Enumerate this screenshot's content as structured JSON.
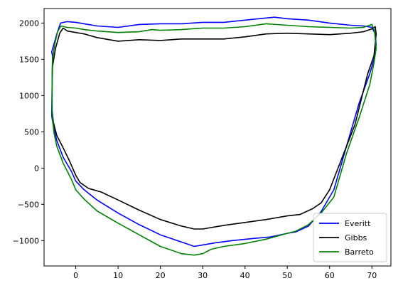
{
  "chart_data": {
    "type": "line",
    "title": "",
    "xlabel": "",
    "ylabel": "",
    "xlim": [
      -7.5,
      74.5
    ],
    "ylim": [
      -1350,
      2200
    ],
    "xticks": [
      0,
      10,
      20,
      30,
      40,
      50,
      60,
      70
    ],
    "yticks": [
      -1000,
      -500,
      0,
      500,
      1000,
      1500,
      2000
    ],
    "grid": false,
    "legend_position": "lower-right",
    "series": [
      {
        "name": "Everitt",
        "color": "#0000ff",
        "x": [
          -5.5,
          -5.7,
          -5.2,
          -4.5,
          -3.6,
          -2,
          0,
          2,
          5,
          10,
          15,
          20,
          25,
          30,
          35,
          40,
          45,
          47,
          50,
          55,
          60,
          65,
          68,
          70,
          70.8,
          71,
          70.5,
          69.5,
          67,
          64,
          61,
          58,
          55,
          52,
          50,
          46,
          42,
          37,
          33,
          30,
          28,
          26,
          23,
          20,
          15,
          10,
          5,
          2,
          0,
          -1,
          -3,
          -4.5,
          -5.2,
          -5.6,
          -5.7
        ],
        "y": [
          1550,
          1600,
          1700,
          1850,
          2000,
          2020,
          2010,
          1990,
          1960,
          1940,
          1980,
          1990,
          1990,
          2010,
          2010,
          2040,
          2070,
          2080,
          2060,
          2040,
          2000,
          1970,
          1960,
          1940,
          1850,
          1700,
          1500,
          1300,
          900,
          300,
          -300,
          -600,
          -800,
          -880,
          -900,
          -950,
          -970,
          -1000,
          -1030,
          -1060,
          -1080,
          -1040,
          -980,
          -920,
          -780,
          -620,
          -440,
          -300,
          -180,
          -50,
          150,
          380,
          550,
          680,
          740
        ]
      },
      {
        "name": "Gibbs",
        "color": "#000000",
        "x": [
          -5.6,
          -5.5,
          -4.8,
          -3.8,
          -3,
          -2,
          0,
          2,
          5,
          10,
          15,
          20,
          25,
          30,
          35,
          40,
          45,
          50,
          55,
          60,
          65,
          68,
          70,
          70.8,
          71,
          70.5,
          69,
          66,
          63,
          60,
          58,
          56,
          53,
          50,
          45,
          40,
          35,
          30,
          28,
          25,
          20,
          15,
          10,
          6,
          3,
          1,
          0,
          -1.5,
          -3,
          -4.5,
          -5.3,
          -5.6
        ],
        "y": [
          1250,
          1400,
          1650,
          1860,
          1930,
          1890,
          1870,
          1850,
          1800,
          1750,
          1770,
          1760,
          1780,
          1780,
          1780,
          1810,
          1850,
          1860,
          1850,
          1840,
          1860,
          1880,
          1920,
          1950,
          1850,
          1550,
          1300,
          600,
          150,
          -300,
          -480,
          -560,
          -640,
          -660,
          -710,
          -750,
          -790,
          -840,
          -840,
          -800,
          -710,
          -580,
          -440,
          -330,
          -280,
          -200,
          -100,
          100,
          280,
          450,
          630,
          800
        ]
      },
      {
        "name": "Barreto",
        "color": "#008000",
        "x": [
          -5.6,
          -5.5,
          -5,
          -4.3,
          -3.5,
          -2,
          0,
          2,
          5,
          10,
          15,
          18,
          20,
          25,
          30,
          35,
          40,
          45,
          50,
          55,
          60,
          65,
          68,
          70,
          70.6,
          71,
          70.5,
          69.5,
          67,
          64,
          61,
          58,
          55,
          52,
          50,
          45,
          40,
          35,
          32,
          30,
          28,
          25,
          20,
          15,
          10,
          5,
          2,
          0,
          -1,
          -3,
          -4.5,
          -5.2,
          -5.6
        ],
        "y": [
          1300,
          1500,
          1700,
          1880,
          1960,
          1940,
          1930,
          1910,
          1890,
          1870,
          1880,
          1910,
          1900,
          1910,
          1930,
          1930,
          1950,
          1990,
          1970,
          1950,
          1940,
          1930,
          1940,
          1980,
          1900,
          1650,
          1450,
          1150,
          700,
          200,
          -400,
          -620,
          -780,
          -870,
          -900,
          -980,
          -1040,
          -1080,
          -1120,
          -1180,
          -1200,
          -1180,
          -1080,
          -920,
          -760,
          -590,
          -430,
          -300,
          -160,
          70,
          300,
          500,
          760
        ]
      }
    ]
  }
}
